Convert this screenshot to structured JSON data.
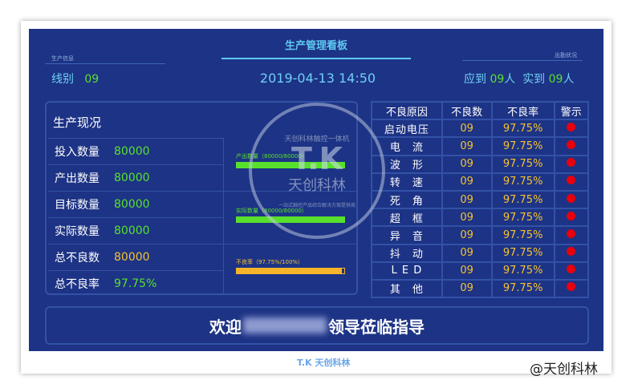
{
  "header": {
    "title": "生产管理看板",
    "left_caption": "生产信息",
    "right_caption": "出勤状况",
    "line_label": "线别",
    "line_value": "09",
    "datetime": "2019-04-13 14:50",
    "expected_label": "应到",
    "expected_value": "09",
    "actual_label": "实到",
    "actual_value": "09",
    "person_unit": "人"
  },
  "production": {
    "title": "生产现况",
    "rows": [
      {
        "label": "投入数量",
        "value": "80000",
        "color": "#58e02c"
      },
      {
        "label": "产出数量",
        "value": "80000",
        "color": "#58e02c"
      },
      {
        "label": "目标数量",
        "value": "80000",
        "color": "#58e02c"
      },
      {
        "label": "实际数量",
        "value": "80000",
        "color": "#58e02c"
      },
      {
        "label": "总不良数",
        "value": "80000",
        "color": "#f6c231"
      },
      {
        "label": "总不良率",
        "value": "97.75%",
        "color": "#58e02c"
      }
    ],
    "bars": [
      {
        "label": "产出数量（80000/80000）",
        "fraction": 1.0,
        "color": "#58e02c"
      },
      {
        "label": "实际数量（80000/80000）",
        "fraction": 1.0,
        "color": "#58e02c"
      },
      {
        "label": "不良率（97.75%/100%）",
        "fraction": 0.9775,
        "color": "#f6b42a"
      }
    ]
  },
  "defects": {
    "headers": [
      "不良原因",
      "不良数",
      "不良率",
      "警示"
    ],
    "rows": [
      {
        "cause": "启动电压",
        "count": "09",
        "rate": "97.75%"
      },
      {
        "cause": "电　流",
        "count": "09",
        "rate": "97.75%"
      },
      {
        "cause": "波　形",
        "count": "09",
        "rate": "97.75%"
      },
      {
        "cause": "转　速",
        "count": "09",
        "rate": "97.75%"
      },
      {
        "cause": "死　角",
        "count": "09",
        "rate": "97.75%"
      },
      {
        "cause": "超　框",
        "count": "09",
        "rate": "97.75%"
      },
      {
        "cause": "异　音",
        "count": "09",
        "rate": "97.75%"
      },
      {
        "cause": "抖　动",
        "count": "09",
        "rate": "97.75%"
      },
      {
        "cause": "L E D",
        "count": "09",
        "rate": "97.75%"
      },
      {
        "cause": "其　他",
        "count": "09",
        "rate": "97.75%"
      }
    ],
    "alert_color": "#e8000c"
  },
  "banner": {
    "prefix": "欢迎",
    "suffix": "领导莅临指导"
  },
  "watermark": {
    "logo": "T.K",
    "name": "天创科林",
    "ring_text": "天创科林触控一体机",
    "subtext": "一站式触控产品综合解决方案提供商"
  },
  "footer": {
    "logo": "T.K 天创科林",
    "credit": "@天创科林"
  }
}
